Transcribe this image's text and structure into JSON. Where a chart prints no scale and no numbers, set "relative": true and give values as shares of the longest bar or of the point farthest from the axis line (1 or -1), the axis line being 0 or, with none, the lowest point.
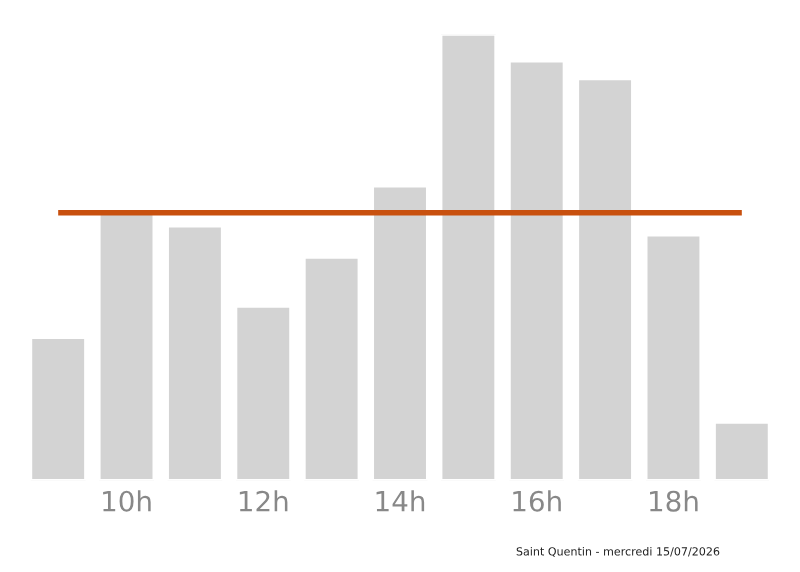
{
  "chart_data": {
    "type": "bar",
    "relative": true,
    "categories": [
      null,
      "10h",
      null,
      "12h",
      null,
      "14h",
      null,
      "16h",
      null,
      "18h",
      null
    ],
    "series": [
      {
        "color": "#d3d3d3",
        "values": [
          0.32,
          0.6,
          0.57,
          0.39,
          0.5,
          0.66,
          1,
          0.94,
          0.9,
          0.55,
          0.13
        ]
      }
    ],
    "ref_lines": [
      {
        "axis": "y",
        "value": 0.6,
        "color": "#c8500e"
      }
    ],
    "annotations": [
      "Saint Quentin - mercredi 15/07/2026"
    ],
    "grid": false,
    "legend": false
  }
}
